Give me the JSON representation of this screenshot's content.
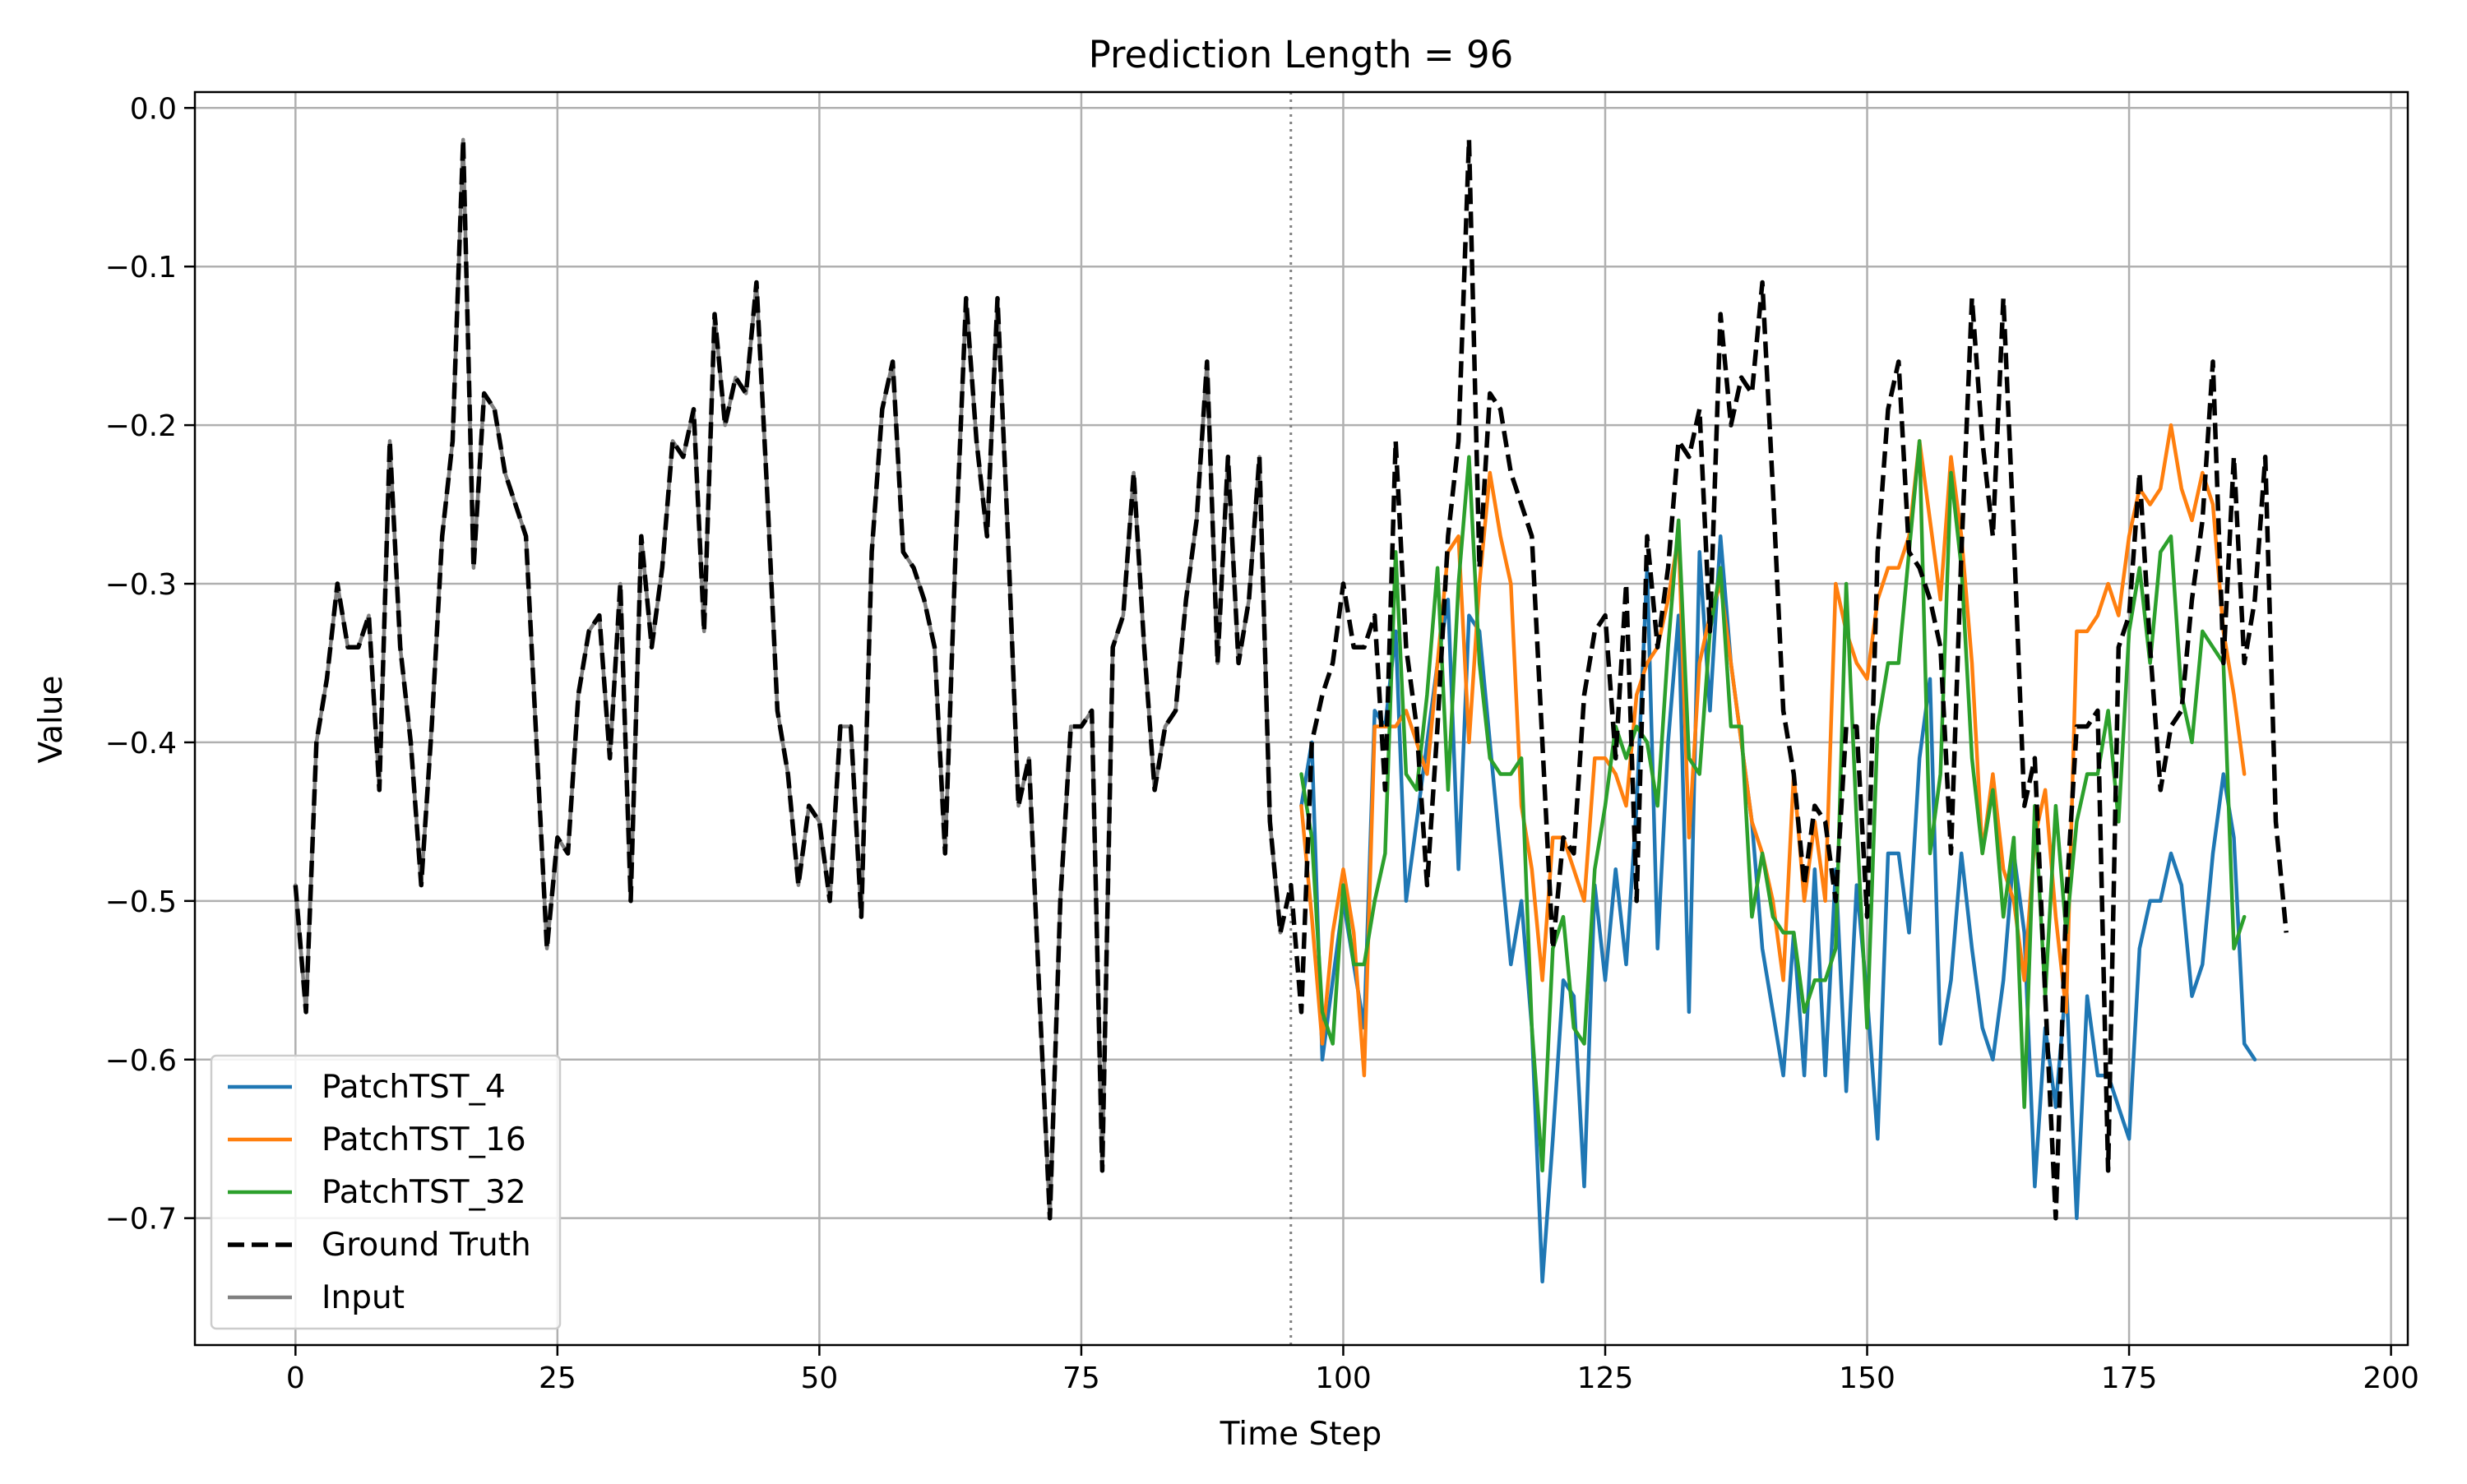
{
  "chart_data": {
    "type": "line",
    "title": "Prediction Length = 96",
    "xlabel": "Time Step",
    "ylabel": "Value",
    "xlim": [
      -9.6,
      201.6
    ],
    "ylim": [
      -0.78,
      0.01
    ],
    "xticks": [
      0,
      25,
      50,
      75,
      100,
      125,
      150,
      175,
      200
    ],
    "yticks": [
      0.0,
      -0.1,
      -0.2,
      -0.3,
      -0.4,
      -0.5,
      -0.6,
      -0.7
    ],
    "ytick_labels": [
      "0.0",
      "−0.1",
      "−0.2",
      "−0.3",
      "−0.4",
      "−0.5",
      "−0.6",
      "−0.7"
    ],
    "grid": true,
    "legend_position": "lower-left",
    "vline_x": 95,
    "series": [
      {
        "name": "PatchTST_4",
        "color": "#1f77b4",
        "style": "solid",
        "x_start": 96,
        "values": [
          -0.44,
          -0.4,
          -0.6,
          -0.55,
          -0.5,
          -0.54,
          -0.58,
          -0.38,
          -0.39,
          -0.33,
          -0.5,
          -0.45,
          -0.4,
          -0.35,
          -0.31,
          -0.48,
          -0.32,
          -0.33,
          -0.4,
          -0.47,
          -0.54,
          -0.5,
          -0.58,
          -0.74,
          -0.65,
          -0.55,
          -0.56,
          -0.68,
          -0.49,
          -0.55,
          -0.48,
          -0.54,
          -0.44,
          -0.29,
          -0.53,
          -0.4,
          -0.32,
          -0.57,
          -0.28,
          -0.38,
          -0.27,
          -0.35,
          -0.4,
          -0.45,
          -0.53,
          -0.57,
          -0.61,
          -0.52,
          -0.61,
          -0.48,
          -0.61,
          -0.48,
          -0.62,
          -0.49,
          -0.56,
          -0.65,
          -0.47,
          -0.47,
          -0.52,
          -0.41,
          -0.36,
          -0.59,
          -0.55,
          -0.47,
          -0.53,
          -0.58,
          -0.6,
          -0.55,
          -0.47,
          -0.52,
          -0.68,
          -0.58,
          -0.63,
          -0.55,
          -0.7,
          -0.56,
          -0.61,
          -0.61,
          -0.63,
          -0.65,
          -0.53,
          -0.5,
          -0.5,
          -0.47,
          -0.49,
          -0.56,
          -0.54,
          -0.47,
          -0.42,
          -0.46,
          -0.59,
          -0.6
        ]
      },
      {
        "name": "PatchTST_16",
        "color": "#ff7f0e",
        "style": "solid",
        "x_start": 96,
        "values": [
          -0.44,
          -0.51,
          -0.59,
          -0.52,
          -0.48,
          -0.52,
          -0.61,
          -0.39,
          -0.39,
          -0.39,
          -0.38,
          -0.4,
          -0.42,
          -0.35,
          -0.28,
          -0.27,
          -0.4,
          -0.3,
          -0.23,
          -0.27,
          -0.3,
          -0.44,
          -0.48,
          -0.55,
          -0.46,
          -0.46,
          -0.48,
          -0.5,
          -0.41,
          -0.41,
          -0.42,
          -0.44,
          -0.37,
          -0.35,
          -0.34,
          -0.31,
          -0.27,
          -0.46,
          -0.35,
          -0.32,
          -0.3,
          -0.35,
          -0.4,
          -0.45,
          -0.47,
          -0.5,
          -0.55,
          -0.42,
          -0.5,
          -0.45,
          -0.5,
          -0.3,
          -0.33,
          -0.35,
          -0.36,
          -0.31,
          -0.29,
          -0.29,
          -0.27,
          -0.21,
          -0.26,
          -0.31,
          -0.22,
          -0.27,
          -0.35,
          -0.47,
          -0.42,
          -0.48,
          -0.5,
          -0.55,
          -0.46,
          -0.43,
          -0.51,
          -0.57,
          -0.33,
          -0.33,
          -0.32,
          -0.3,
          -0.32,
          -0.27,
          -0.24,
          -0.25,
          -0.24,
          -0.2,
          -0.24,
          -0.26,
          -0.23,
          -0.25,
          -0.33,
          -0.37,
          -0.42
        ]
      },
      {
        "name": "PatchTST_32",
        "color": "#2ca02c",
        "style": "solid",
        "x_start": 96,
        "values": [
          -0.42,
          -0.46,
          -0.57,
          -0.59,
          -0.49,
          -0.54,
          -0.54,
          -0.5,
          -0.47,
          -0.28,
          -0.42,
          -0.43,
          -0.37,
          -0.29,
          -0.43,
          -0.3,
          -0.22,
          -0.35,
          -0.41,
          -0.42,
          -0.42,
          -0.41,
          -0.58,
          -0.67,
          -0.53,
          -0.51,
          -0.58,
          -0.59,
          -0.48,
          -0.44,
          -0.39,
          -0.41,
          -0.39,
          -0.4,
          -0.44,
          -0.34,
          -0.26,
          -0.41,
          -0.42,
          -0.33,
          -0.29,
          -0.39,
          -0.39,
          -0.51,
          -0.47,
          -0.51,
          -0.52,
          -0.52,
          -0.57,
          -0.55,
          -0.55,
          -0.53,
          -0.3,
          -0.45,
          -0.58,
          -0.39,
          -0.35,
          -0.35,
          -0.28,
          -0.21,
          -0.47,
          -0.42,
          -0.23,
          -0.29,
          -0.41,
          -0.47,
          -0.43,
          -0.51,
          -0.46,
          -0.63,
          -0.44,
          -0.56,
          -0.44,
          -0.52,
          -0.45,
          -0.42,
          -0.42,
          -0.38,
          -0.45,
          -0.33,
          -0.29,
          -0.35,
          -0.28,
          -0.27,
          -0.37,
          -0.4,
          -0.33,
          -0.34,
          -0.35,
          -0.53,
          -0.51
        ]
      },
      {
        "name": "Ground Truth",
        "color": "#000000",
        "style": "dashed",
        "x_start": 0,
        "values": [
          -0.49,
          -0.57,
          -0.4,
          -0.36,
          -0.3,
          -0.34,
          -0.34,
          -0.32,
          -0.43,
          -0.21,
          -0.34,
          -0.4,
          -0.49,
          -0.39,
          -0.27,
          -0.21,
          -0.02,
          -0.29,
          -0.18,
          -0.19,
          -0.23,
          -0.25,
          -0.27,
          -0.4,
          -0.53,
          -0.46,
          -0.47,
          -0.37,
          -0.33,
          -0.32,
          -0.41,
          -0.3,
          -0.5,
          -0.27,
          -0.34,
          -0.29,
          -0.21,
          -0.22,
          -0.19,
          -0.33,
          -0.13,
          -0.2,
          -0.17,
          -0.18,
          -0.11,
          -0.24,
          -0.38,
          -0.42,
          -0.49,
          -0.44,
          -0.45,
          -0.5,
          -0.39,
          -0.39,
          -0.51,
          -0.28,
          -0.19,
          -0.16,
          -0.28,
          -0.29,
          -0.31,
          -0.34,
          -0.47,
          -0.28,
          -0.12,
          -0.21,
          -0.27,
          -0.12,
          -0.27,
          -0.44,
          -0.41,
          -0.56,
          -0.7,
          -0.5,
          -0.39,
          -0.39,
          -0.38,
          -0.67,
          -0.34,
          -0.32,
          -0.23,
          -0.34,
          -0.43,
          -0.39,
          -0.38,
          -0.31,
          -0.26,
          -0.16,
          -0.35,
          -0.22,
          -0.35,
          -0.31,
          -0.22,
          -0.45,
          -0.52,
          -0.49,
          -0.57,
          -0.4,
          -0.37,
          -0.35,
          -0.3,
          -0.34,
          -0.34,
          -0.32,
          -0.43,
          -0.21,
          -0.34,
          -0.39,
          -0.49,
          -0.39,
          -0.27,
          -0.21,
          -0.02,
          -0.29,
          -0.18,
          -0.19,
          -0.23,
          -0.25,
          -0.27,
          -0.4,
          -0.53,
          -0.46,
          -0.47,
          -0.37,
          -0.33,
          -0.32,
          -0.41,
          -0.3,
          -0.5,
          -0.27,
          -0.34,
          -0.29,
          -0.21,
          -0.22,
          -0.19,
          -0.33,
          -0.13,
          -0.2,
          -0.17,
          -0.18,
          -0.11,
          -0.24,
          -0.38,
          -0.42,
          -0.49,
          -0.44,
          -0.45,
          -0.5,
          -0.39,
          -0.39,
          -0.51,
          -0.28,
          -0.19,
          -0.16,
          -0.28,
          -0.29,
          -0.31,
          -0.34,
          -0.47,
          -0.28,
          -0.12,
          -0.21,
          -0.27,
          -0.12,
          -0.27,
          -0.44,
          -0.41,
          -0.56,
          -0.7,
          -0.5,
          -0.39,
          -0.39,
          -0.38,
          -0.67,
          -0.34,
          -0.32,
          -0.23,
          -0.34,
          -0.43,
          -0.39,
          -0.38,
          -0.31,
          -0.26,
          -0.16,
          -0.35,
          -0.22,
          -0.35,
          -0.31,
          -0.22,
          -0.45,
          -0.52
        ]
      },
      {
        "name": "Input",
        "color": "#808080",
        "style": "solid",
        "x_start": 0,
        "values": [
          -0.49,
          -0.57,
          -0.4,
          -0.36,
          -0.3,
          -0.34,
          -0.34,
          -0.32,
          -0.43,
          -0.21,
          -0.34,
          -0.4,
          -0.49,
          -0.39,
          -0.27,
          -0.21,
          -0.02,
          -0.29,
          -0.18,
          -0.19,
          -0.23,
          -0.25,
          -0.27,
          -0.4,
          -0.53,
          -0.46,
          -0.47,
          -0.37,
          -0.33,
          -0.32,
          -0.41,
          -0.3,
          -0.5,
          -0.27,
          -0.34,
          -0.29,
          -0.21,
          -0.22,
          -0.19,
          -0.33,
          -0.13,
          -0.2,
          -0.17,
          -0.18,
          -0.11,
          -0.24,
          -0.38,
          -0.42,
          -0.49,
          -0.44,
          -0.45,
          -0.5,
          -0.39,
          -0.39,
          -0.51,
          -0.28,
          -0.19,
          -0.16,
          -0.28,
          -0.29,
          -0.31,
          -0.34,
          -0.47,
          -0.28,
          -0.12,
          -0.21,
          -0.27,
          -0.12,
          -0.27,
          -0.44,
          -0.41,
          -0.56,
          -0.7,
          -0.5,
          -0.39,
          -0.39,
          -0.38,
          -0.67,
          -0.34,
          -0.32,
          -0.23,
          -0.34,
          -0.43,
          -0.39,
          -0.38,
          -0.31,
          -0.26,
          -0.16,
          -0.35,
          -0.22,
          -0.35,
          -0.31,
          -0.22,
          -0.45,
          -0.52
        ]
      }
    ]
  }
}
